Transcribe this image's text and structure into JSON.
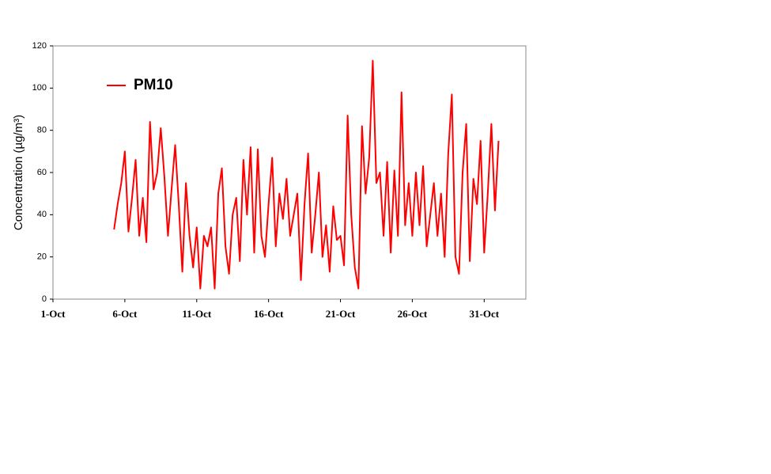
{
  "chart_data": {
    "type": "line",
    "ylabel": "Concentration (µg/m³)",
    "xlim": [
      1,
      33.9
    ],
    "xticks": [
      {
        "value": 1,
        "label": "1-Oct"
      },
      {
        "value": 6,
        "label": "6-Oct"
      },
      {
        "value": 11,
        "label": "11-Oct"
      },
      {
        "value": 16,
        "label": "16-Oct"
      },
      {
        "value": 21,
        "label": "21-Oct"
      },
      {
        "value": 26,
        "label": "26-Oct"
      },
      {
        "value": 31,
        "label": "31-Oct"
      }
    ],
    "ylim": [
      0,
      120
    ],
    "yticks": [
      0,
      20,
      40,
      60,
      80,
      100,
      120
    ],
    "legend": "upper left",
    "x": [
      5.25,
      5.5,
      5.75,
      6,
      6.25,
      6.5,
      6.75,
      7,
      7.25,
      7.5,
      7.75,
      8,
      8.25,
      8.5,
      8.75,
      9,
      9.25,
      9.5,
      9.75,
      10,
      10.25,
      10.5,
      10.75,
      11,
      11.25,
      11.5,
      11.75,
      12,
      12.25,
      12.5,
      12.75,
      13,
      13.25,
      13.5,
      13.75,
      14,
      14.25,
      14.5,
      14.75,
      15,
      15.25,
      15.5,
      15.75,
      16,
      16.25,
      16.5,
      16.75,
      17,
      17.25,
      17.5,
      17.75,
      18,
      18.25,
      18.5,
      18.75,
      19,
      19.25,
      19.5,
      19.75,
      20,
      20.25,
      20.5,
      20.75,
      21,
      21.25,
      21.5,
      21.75,
      22,
      22.25,
      22.5,
      22.75,
      23,
      23.25,
      23.5,
      23.75,
      24,
      24.25,
      24.5,
      24.75,
      25,
      25.25,
      25.5,
      25.75,
      26,
      26.25,
      26.5,
      26.75,
      27,
      27.25,
      27.5,
      27.75,
      28,
      28.25,
      28.5,
      28.75,
      29,
      29.25,
      29.5,
      29.75,
      30,
      30.25,
      30.5,
      30.75,
      31,
      31.25,
      31.5,
      31.75,
      32
    ],
    "series": [
      {
        "name": "PM10",
        "color": "#ff0000",
        "values": [
          33,
          45,
          55,
          70,
          32,
          48,
          66,
          30,
          48,
          27,
          84,
          52,
          60,
          81,
          58,
          30,
          52,
          73,
          45,
          13,
          55,
          30,
          15,
          34,
          5,
          30,
          25,
          34,
          5,
          50,
          62,
          25,
          12,
          40,
          48,
          18,
          66,
          40,
          72,
          22,
          71,
          30,
          20,
          45,
          67,
          25,
          50,
          38,
          57,
          30,
          40,
          50,
          9,
          45,
          69,
          22,
          40,
          60,
          20,
          35,
          13,
          44,
          28,
          30,
          16,
          87,
          40,
          15,
          5,
          82,
          50,
          67,
          113,
          55,
          60,
          30,
          65,
          22,
          61,
          30,
          98,
          35,
          55,
          30,
          60,
          35,
          63,
          25,
          40,
          55,
          30,
          50,
          20,
          69,
          97,
          20,
          12,
          60,
          83,
          18,
          57,
          45,
          75,
          22,
          50,
          83,
          42,
          75
        ]
      }
    ]
  }
}
